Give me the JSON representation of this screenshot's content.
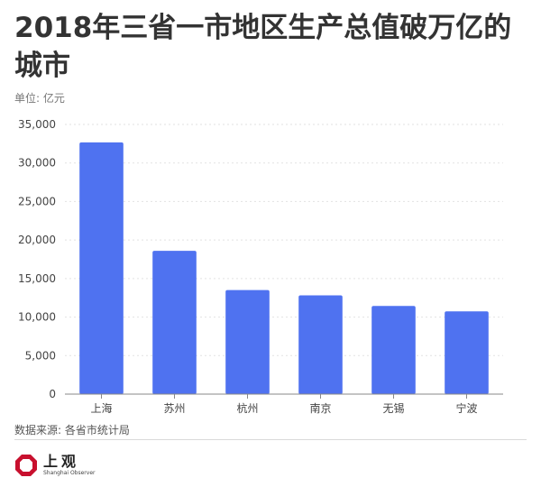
{
  "chart_data": {
    "type": "bar",
    "title": "2018年三省一市地区生产总值破万亿的城市",
    "unit_label": "单位: 亿元",
    "categories": [
      "上海",
      "苏州",
      "杭州",
      "南京",
      "无锡",
      "宁波"
    ],
    "values": [
      32680,
      18597,
      13509,
      12820,
      11439,
      10746
    ],
    "yticks": [
      "0",
      "5,000",
      "10,000",
      "15,000",
      "20,000",
      "25,000",
      "30,000",
      "35,000"
    ],
    "ylim": [
      0,
      35000
    ],
    "grid": true,
    "bar_color": "#4f72f0"
  },
  "footer": {
    "source": "数据来源: 各省市统计局",
    "logo_name": "上观",
    "logo_sub": "Shanghai Observer"
  }
}
